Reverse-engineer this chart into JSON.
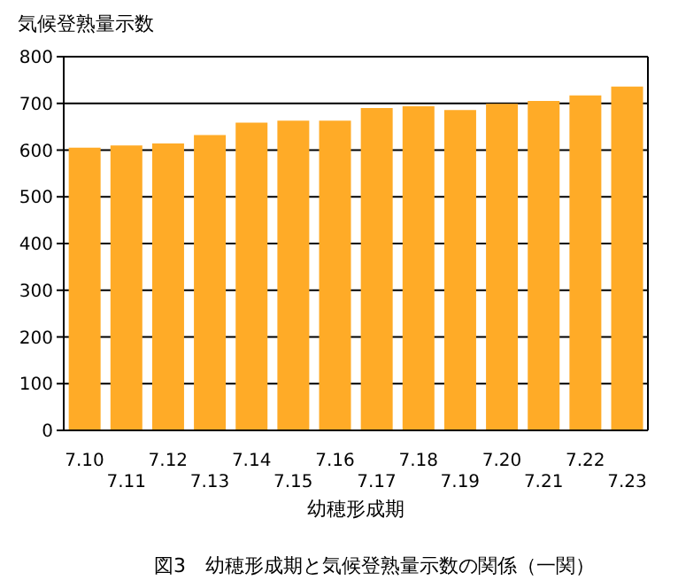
{
  "chart_data": {
    "type": "bar",
    "ylabel": "気候登熟量示数",
    "xlabel": "幼穂形成期",
    "annotations": [
      "図3　幼穂形成期と気候登熟量示数の関係（一関）"
    ],
    "categories": [
      "7.10",
      "7.11",
      "7.12",
      "7.13",
      "7.14",
      "7.15",
      "7.16",
      "7.17",
      "7.18",
      "7.19",
      "7.20",
      "7.21",
      "7.22",
      "7.23"
    ],
    "values": [
      605,
      610,
      614,
      632,
      659,
      663,
      663,
      690,
      694,
      686,
      699,
      705,
      717,
      736
    ],
    "color": "#ffab27",
    "ylim": [
      0,
      800
    ],
    "yticks": [
      0,
      100,
      200,
      300,
      400,
      500,
      600,
      700,
      800
    ],
    "grid": "y"
  }
}
